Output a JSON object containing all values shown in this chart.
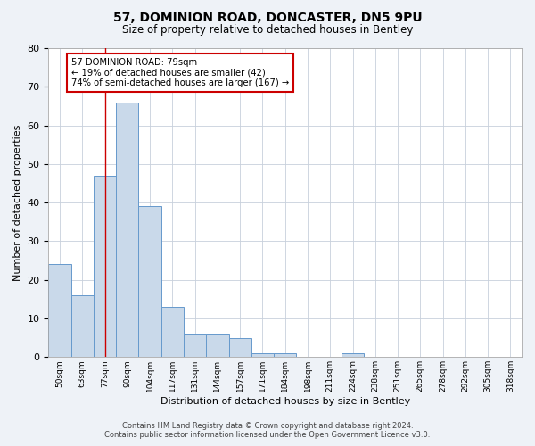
{
  "title1": "57, DOMINION ROAD, DONCASTER, DN5 9PU",
  "title2": "Size of property relative to detached houses in Bentley",
  "xlabel": "Distribution of detached houses by size in Bentley",
  "ylabel": "Number of detached properties",
  "categories": [
    "50sqm",
    "63sqm",
    "77sqm",
    "90sqm",
    "104sqm",
    "117sqm",
    "131sqm",
    "144sqm",
    "157sqm",
    "171sqm",
    "184sqm",
    "198sqm",
    "211sqm",
    "224sqm",
    "238sqm",
    "251sqm",
    "265sqm",
    "278sqm",
    "292sqm",
    "305sqm",
    "318sqm"
  ],
  "values": [
    24,
    16,
    47,
    66,
    39,
    13,
    6,
    6,
    5,
    1,
    1,
    0,
    0,
    1,
    0,
    0,
    0,
    0,
    0,
    0,
    0
  ],
  "bar_color": "#c9d9ea",
  "bar_edge_color": "#6699cc",
  "highlight_bar_index": 2,
  "highlight_line_color": "#cc0000",
  "ylim": [
    0,
    80
  ],
  "yticks": [
    0,
    10,
    20,
    30,
    40,
    50,
    60,
    70,
    80
  ],
  "annotation_text": "57 DOMINION ROAD: 79sqm\n← 19% of detached houses are smaller (42)\n74% of semi-detached houses are larger (167) →",
  "annotation_box_color": "#cc0000",
  "footer1": "Contains HM Land Registry data © Crown copyright and database right 2024.",
  "footer2": "Contains public sector information licensed under the Open Government Licence v3.0.",
  "bg_color": "#eef2f7",
  "plot_bg_color": "#ffffff",
  "grid_color": "#c8d0dc"
}
